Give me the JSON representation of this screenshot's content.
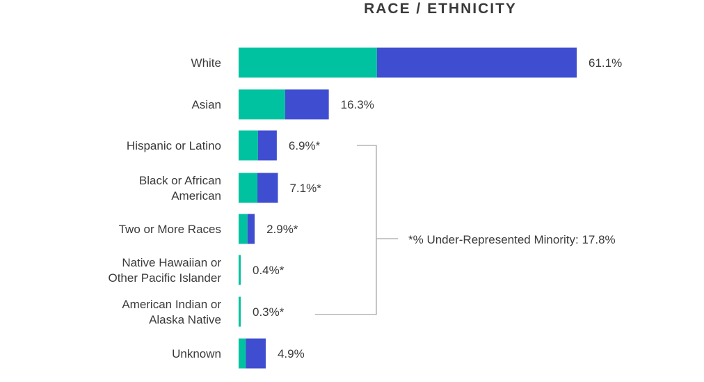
{
  "chart_data": {
    "type": "bar",
    "orientation": "horizontal",
    "stacked": true,
    "title": "RACE / ETHNICITY",
    "categories": [
      "White",
      "Asian",
      "Hispanic or Latino",
      "Black or African American",
      "Two or More Races",
      "Native Hawaiian or Other Pacific Islander",
      "American Indian or Alaska Native",
      "Unknown"
    ],
    "category_lines": [
      [
        "White"
      ],
      [
        "Asian"
      ],
      [
        "Hispanic or Latino"
      ],
      [
        "Black or African",
        "American"
      ],
      [
        "Two or More Races"
      ],
      [
        "Native Hawaiian or",
        "Other Pacific Islander"
      ],
      [
        "American Indian or",
        "Alaska Native"
      ],
      [
        "Unknown"
      ]
    ],
    "series": [
      {
        "color": "#00c2a0",
        "values": [
          25.0,
          8.4,
          3.5,
          3.4,
          1.6,
          0.2,
          0.15,
          1.3
        ]
      },
      {
        "color": "#3f4ed0",
        "values": [
          36.1,
          7.9,
          3.4,
          3.7,
          1.3,
          0.2,
          0.15,
          3.6
        ]
      }
    ],
    "totals": [
      61.1,
      16.3,
      6.9,
      7.1,
      2.9,
      0.4,
      0.3,
      4.9
    ],
    "value_labels": [
      "61.1%",
      "16.3%",
      "6.9%*",
      "7.1%*",
      "2.9%*",
      "0.4%*",
      "0.3%*",
      "4.9%"
    ],
    "bracket_rows": [
      2,
      6
    ],
    "annotation": "*% Under-Represented Minority: 17.8%",
    "xlim": [
      0,
      61.1
    ],
    "grid": false,
    "legend": "none"
  }
}
